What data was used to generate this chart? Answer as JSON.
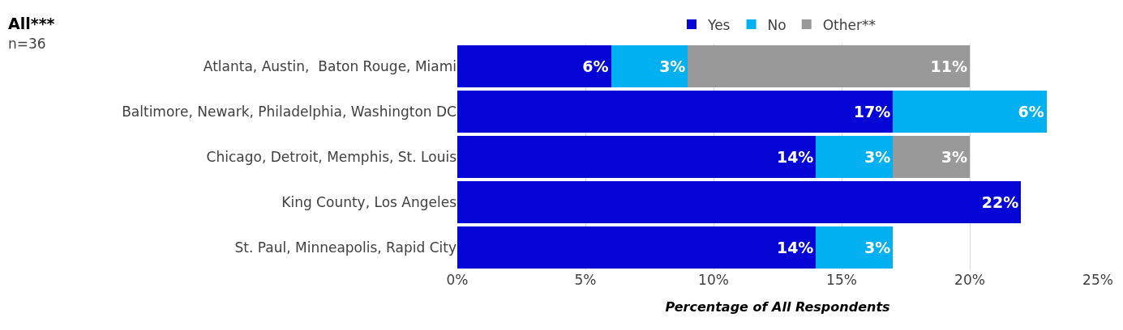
{
  "chart_data": {
    "type": "bar",
    "orientation": "horizontal",
    "stacked": true,
    "title": "All***",
    "subtitle": "n=36",
    "xlabel": "Percentage of All Respondents",
    "categories": [
      "Atlanta, Austin,  Baton Rouge, Miami",
      "Baltimore, Newark, Philadelphia, Washington DC",
      "Chicago, Detroit, Memphis, St. Louis",
      "King County, Los Angeles",
      "St. Paul, Minneapolis, Rapid City"
    ],
    "series": [
      {
        "name": "Yes",
        "color": "#0505d5",
        "values": [
          6,
          17,
          14,
          22,
          14
        ],
        "value_labels": [
          "6%",
          "17%",
          "14%",
          "22%",
          "14%"
        ]
      },
      {
        "name": "No",
        "color": "#00b0f0",
        "values": [
          3,
          6,
          3,
          null,
          3
        ],
        "value_labels": [
          "3%",
          "6%",
          "3%",
          null,
          "3%"
        ]
      },
      {
        "name": "Other**",
        "color": "#999999",
        "values": [
          11,
          null,
          3,
          null,
          null
        ],
        "value_labels": [
          "11%",
          null,
          "3%",
          null,
          null
        ]
      }
    ],
    "xlim": [
      0,
      25
    ],
    "xticks": [
      {
        "value": 0,
        "label": "0%"
      },
      {
        "value": 5,
        "label": "5%"
      },
      {
        "value": 10,
        "label": "10%"
      },
      {
        "value": 15,
        "label": "15%"
      },
      {
        "value": 20,
        "label": "20%"
      },
      {
        "value": 25,
        "label": "25%"
      }
    ],
    "grid": "x",
    "legend": "top"
  }
}
